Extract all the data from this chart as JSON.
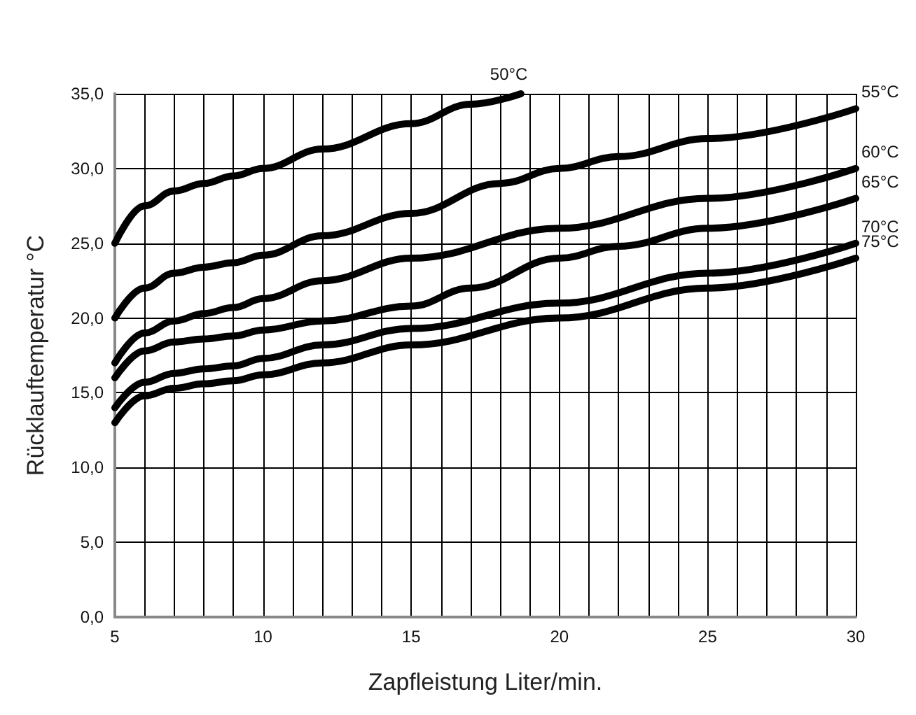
{
  "chart_data": {
    "type": "line",
    "xlabel": "Zapfleistung Liter/min.",
    "ylabel": "Rücklauftemperatur °C",
    "xlim": [
      5,
      30
    ],
    "xticks": [
      5,
      {
        "value": 6,
        "label": null
      },
      {
        "value": 7,
        "label": null
      },
      {
        "value": 8,
        "label": null
      },
      {
        "value": 9,
        "label": null
      },
      10,
      {
        "value": 11,
        "label": null
      },
      {
        "value": 12,
        "label": null
      },
      {
        "value": 13,
        "label": null
      },
      {
        "value": 14,
        "label": null
      },
      15,
      {
        "value": 16,
        "label": null
      },
      {
        "value": 17,
        "label": null
      },
      {
        "value": 18,
        "label": null
      },
      {
        "value": 19,
        "label": null
      },
      20,
      {
        "value": 21,
        "label": null
      },
      {
        "value": 22,
        "label": null
      },
      {
        "value": 23,
        "label": null
      },
      {
        "value": 24,
        "label": null
      },
      25,
      {
        "value": 26,
        "label": null
      },
      {
        "value": 27,
        "label": null
      },
      {
        "value": 28,
        "label": null
      },
      {
        "value": 29,
        "label": null
      },
      30
    ],
    "ylim": [
      0,
      35
    ],
    "yticks": [
      {
        "value": 0,
        "label": "0,0"
      },
      {
        "value": 5,
        "label": "5,0"
      },
      {
        "value": 10,
        "label": "10,0"
      },
      {
        "value": 15,
        "label": "15,0"
      },
      {
        "value": 20,
        "label": "20,0"
      },
      {
        "value": 25,
        "label": "25,0"
      },
      {
        "value": 30,
        "label": "30,0"
      },
      {
        "value": 35,
        "label": "35,0"
      }
    ],
    "grid": true,
    "legend": false,
    "marker": "none",
    "line_style": "solid",
    "series": [
      {
        "name": "50°C",
        "color": "#000000",
        "x": [
          5,
          6,
          7,
          8,
          9,
          10,
          12,
          15,
          17,
          18.7
        ],
        "values": [
          25,
          27.5,
          28.5,
          29,
          29.5,
          30,
          31.3,
          33,
          34.3,
          35
        ]
      },
      {
        "name": "55°C",
        "color": "#000000",
        "x": [
          5,
          6,
          7,
          8,
          9,
          10,
          12,
          15,
          18,
          20,
          22,
          25,
          30
        ],
        "values": [
          20,
          22,
          23,
          23.4,
          23.7,
          24.2,
          25.5,
          27,
          29,
          30,
          30.8,
          32,
          34
        ]
      },
      {
        "name": "60°C",
        "color": "#000000",
        "x": [
          5,
          6,
          7,
          8,
          9,
          10,
          12,
          15,
          20,
          25,
          30
        ],
        "values": [
          17,
          19,
          19.8,
          20.3,
          20.7,
          21.3,
          22.5,
          24,
          26,
          28,
          30
        ]
      },
      {
        "name": "65°C",
        "color": "#000000",
        "x": [
          5,
          6,
          7,
          8,
          9,
          10,
          12,
          15,
          17,
          20,
          22,
          25,
          30
        ],
        "values": [
          16,
          17.8,
          18.4,
          18.6,
          18.8,
          19.2,
          19.8,
          20.8,
          22,
          24,
          24.8,
          26,
          28
        ]
      },
      {
        "name": "70°C",
        "color": "#000000",
        "x": [
          5,
          6,
          7,
          8,
          9,
          10,
          12,
          15,
          20,
          25,
          30
        ],
        "values": [
          14,
          15.7,
          16.3,
          16.6,
          16.8,
          17.3,
          18.2,
          19.3,
          21,
          23,
          25
        ]
      },
      {
        "name": "75°C",
        "color": "#000000",
        "x": [
          5,
          6,
          7,
          8,
          9,
          10,
          12,
          15,
          20,
          25,
          30
        ],
        "values": [
          13,
          14.8,
          15.3,
          15.6,
          15.8,
          16.2,
          17,
          18.2,
          20,
          22,
          24
        ]
      }
    ]
  }
}
